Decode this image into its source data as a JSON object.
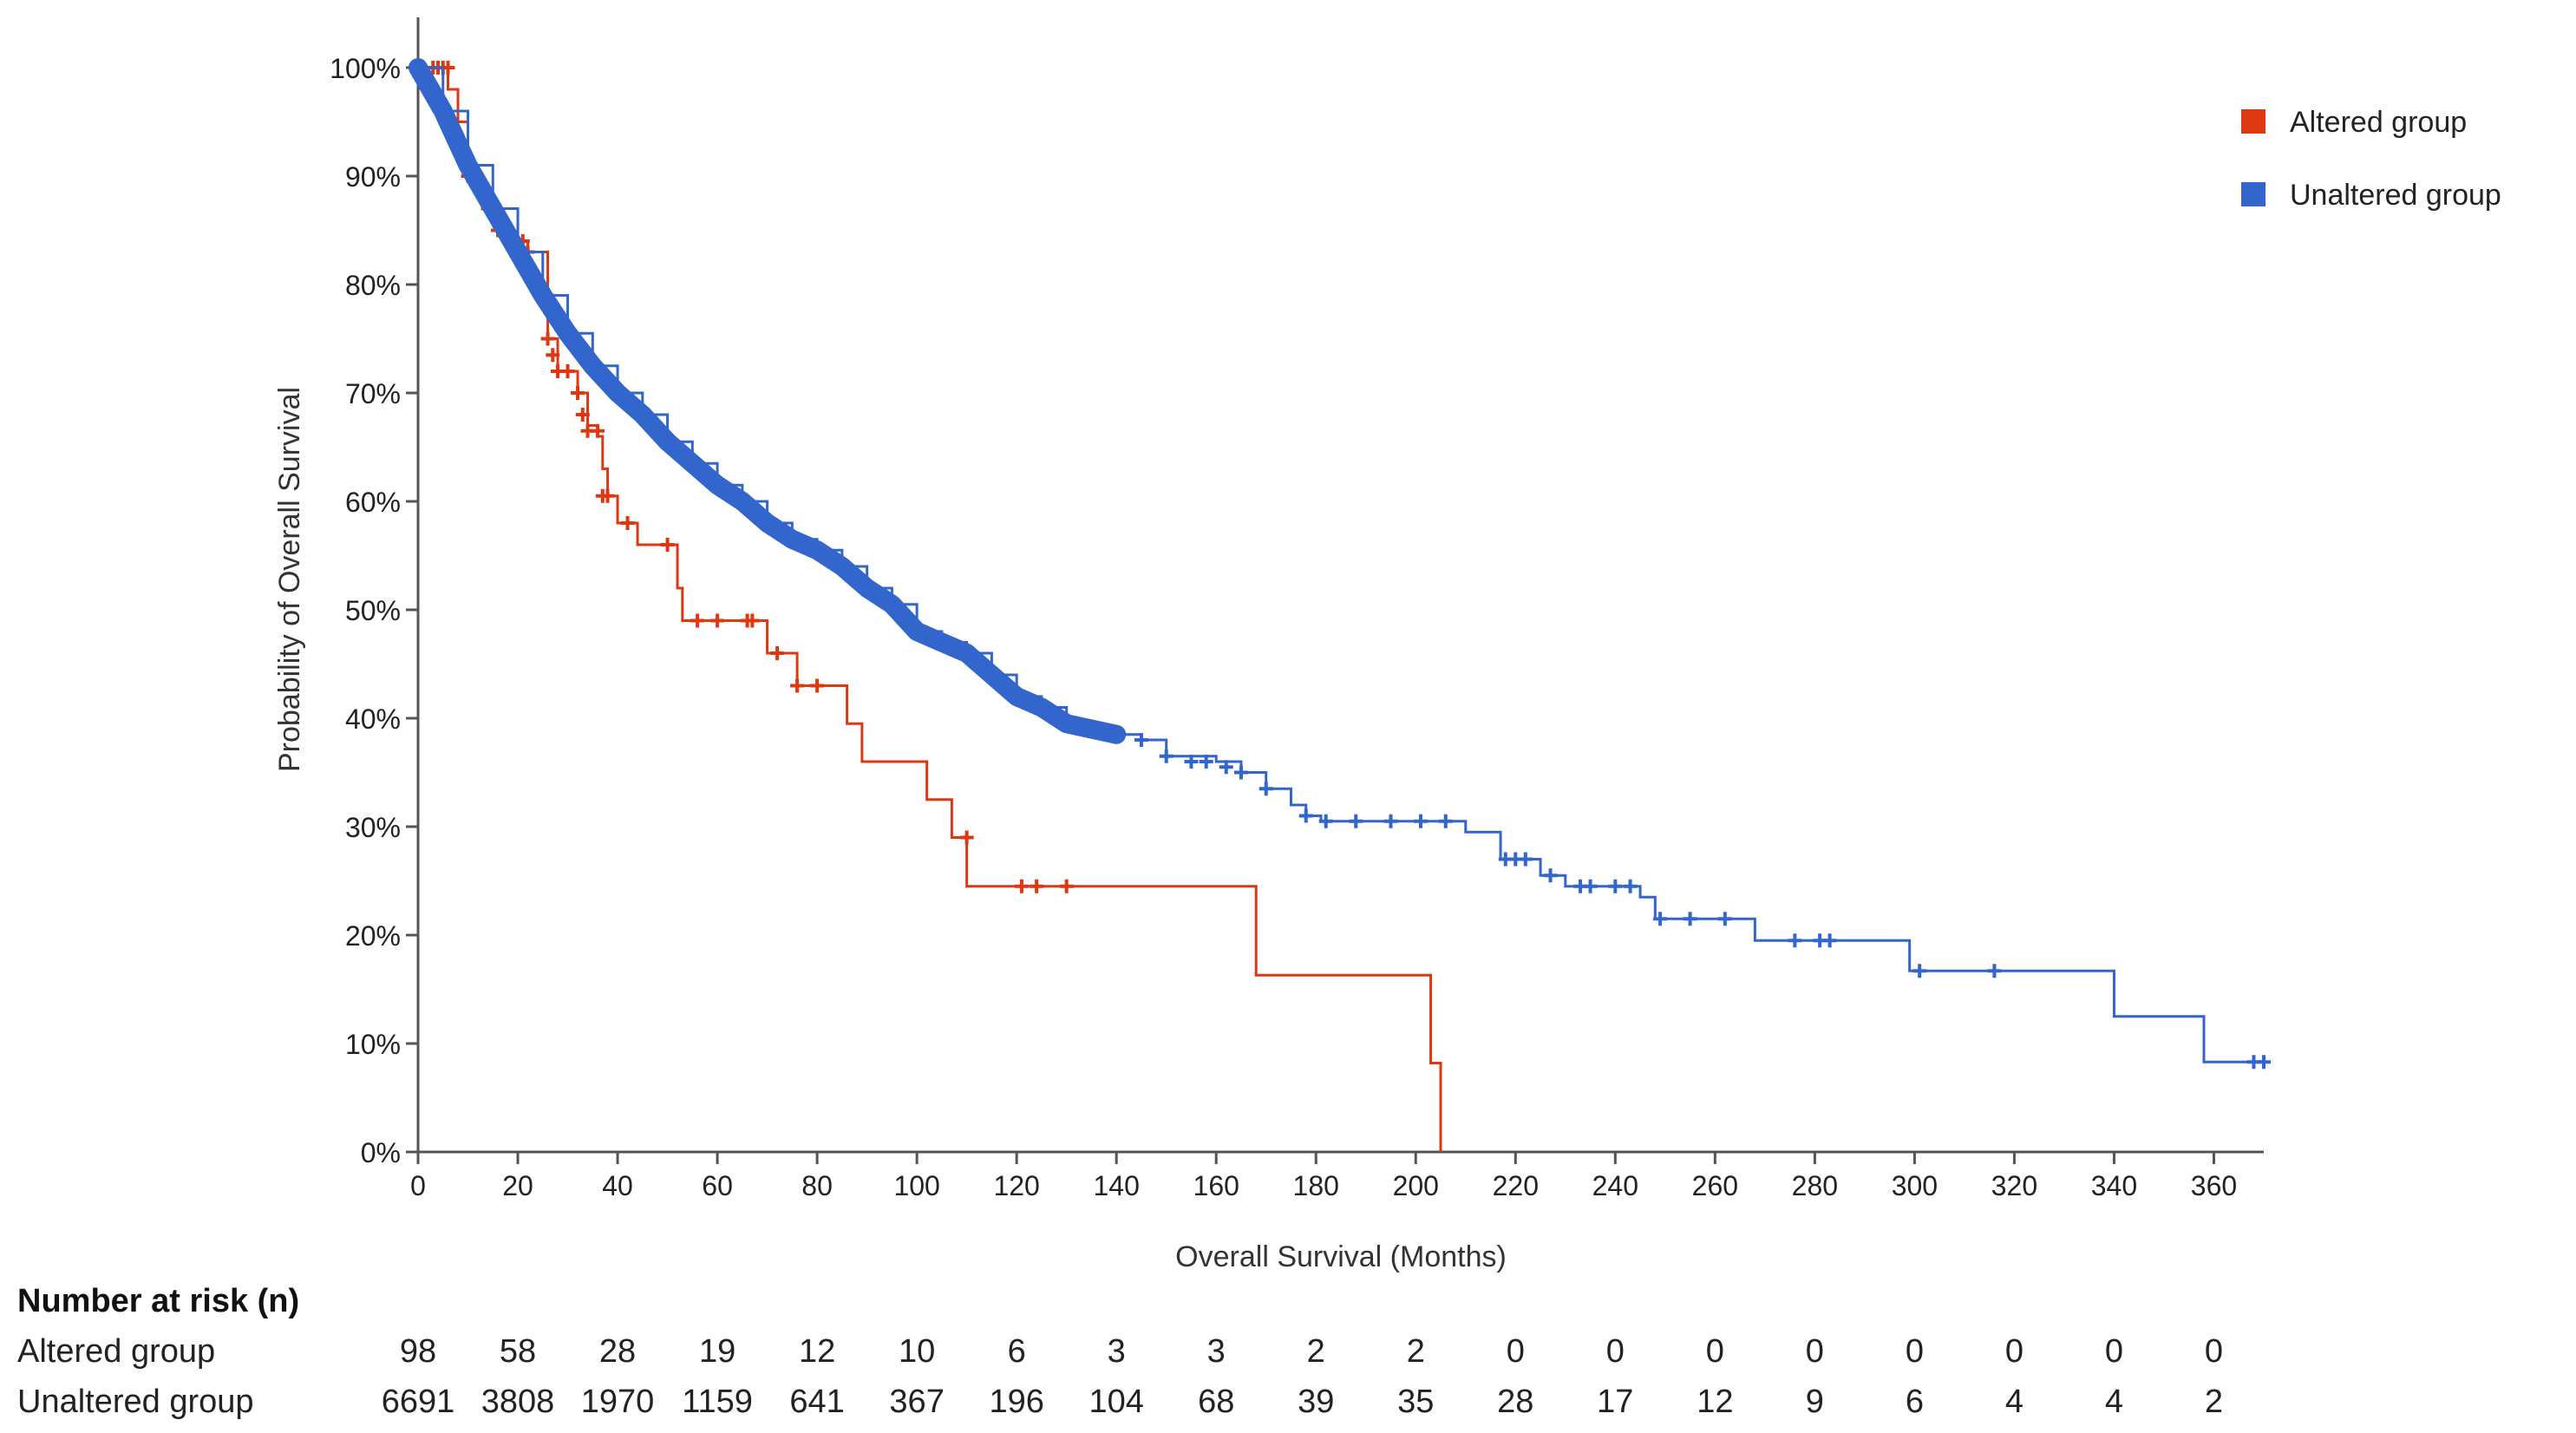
{
  "chart_data": {
    "type": "line",
    "subtype": "kaplan-meier",
    "title": "",
    "xlabel": "Overall Survival (Months)",
    "ylabel": "Probability of Overall Survival",
    "xlim": [
      0,
      370
    ],
    "ylim": [
      0,
      100
    ],
    "x_ticks": [
      0,
      20,
      40,
      60,
      80,
      100,
      120,
      140,
      160,
      180,
      200,
      220,
      240,
      260,
      280,
      300,
      320,
      340,
      360
    ],
    "y_ticks": [
      0,
      10,
      20,
      30,
      40,
      50,
      60,
      70,
      80,
      90,
      100
    ],
    "y_tick_labels": [
      "0%",
      "10%",
      "20%",
      "30%",
      "40%",
      "50%",
      "60%",
      "70%",
      "80%",
      "90%",
      "100%"
    ],
    "legend_position": "top-right",
    "series": [
      {
        "name": "Altered group",
        "color": "#dc3912",
        "step": [
          [
            0,
            100
          ],
          [
            4,
            100
          ],
          [
            6,
            98
          ],
          [
            8,
            95
          ],
          [
            10,
            91
          ],
          [
            12,
            89
          ],
          [
            14,
            87
          ],
          [
            16,
            85
          ],
          [
            18,
            84
          ],
          [
            20,
            84
          ],
          [
            22,
            83
          ],
          [
            26,
            75
          ],
          [
            28,
            72
          ],
          [
            32,
            70
          ],
          [
            34,
            67
          ],
          [
            36,
            66
          ],
          [
            37,
            63
          ],
          [
            38,
            60.5
          ],
          [
            40,
            58
          ],
          [
            44,
            56
          ],
          [
            52,
            52
          ],
          [
            53,
            49
          ],
          [
            70,
            46
          ],
          [
            76,
            43
          ],
          [
            86,
            39.5
          ],
          [
            89,
            36
          ],
          [
            102,
            32.5
          ],
          [
            107,
            29
          ],
          [
            110,
            24.5
          ],
          [
            168,
            16.3
          ],
          [
            203,
            8.2
          ],
          [
            205,
            0
          ]
        ],
        "censored": [
          [
            3,
            100
          ],
          [
            4,
            100
          ],
          [
            5,
            100
          ],
          [
            6,
            100
          ],
          [
            10,
            90
          ],
          [
            14,
            87
          ],
          [
            16,
            85
          ],
          [
            17,
            85
          ],
          [
            19,
            84
          ],
          [
            21,
            84
          ],
          [
            22,
            83
          ],
          [
            26,
            75
          ],
          [
            27,
            73.5
          ],
          [
            28,
            72
          ],
          [
            30,
            72
          ],
          [
            32,
            70
          ],
          [
            33,
            68
          ],
          [
            34,
            66.5
          ],
          [
            36,
            66.5
          ],
          [
            37,
            60.5
          ],
          [
            38,
            60.5
          ],
          [
            42,
            58
          ],
          [
            50,
            56
          ],
          [
            56,
            49
          ],
          [
            60,
            49
          ],
          [
            66,
            49
          ],
          [
            67,
            49
          ],
          [
            72,
            46
          ],
          [
            76,
            43
          ],
          [
            80,
            43
          ],
          [
            110,
            29
          ],
          [
            121,
            24.5
          ],
          [
            124,
            24.5
          ],
          [
            130,
            24.5
          ]
        ]
      },
      {
        "name": "Unaltered group",
        "color": "#3366cc",
        "step": [
          [
            0,
            100
          ],
          [
            5,
            96
          ],
          [
            10,
            91
          ],
          [
            15,
            87
          ],
          [
            20,
            83
          ],
          [
            25,
            79
          ],
          [
            30,
            75.5
          ],
          [
            35,
            72.5
          ],
          [
            40,
            70
          ],
          [
            45,
            68
          ],
          [
            50,
            65.5
          ],
          [
            55,
            63.5
          ],
          [
            60,
            61.5
          ],
          [
            65,
            60
          ],
          [
            70,
            58
          ],
          [
            75,
            56.5
          ],
          [
            80,
            55.5
          ],
          [
            85,
            54
          ],
          [
            90,
            52
          ],
          [
            95,
            50.5
          ],
          [
            100,
            48
          ],
          [
            105,
            47
          ],
          [
            110,
            46
          ],
          [
            115,
            44
          ],
          [
            120,
            42
          ],
          [
            125,
            41
          ],
          [
            130,
            39.5
          ],
          [
            135,
            39
          ],
          [
            140,
            38.5
          ],
          [
            145,
            38
          ],
          [
            150,
            36.5
          ],
          [
            160,
            36
          ],
          [
            165,
            35
          ],
          [
            170,
            33.5
          ],
          [
            175,
            32
          ],
          [
            178,
            31
          ],
          [
            181,
            30.5
          ],
          [
            210,
            29.5
          ],
          [
            217,
            27
          ],
          [
            225,
            25.5
          ],
          [
            230,
            24.5
          ],
          [
            245,
            23.5
          ],
          [
            248,
            21.5
          ],
          [
            268,
            19.5
          ],
          [
            299,
            16.7
          ],
          [
            340,
            12.5
          ],
          [
            358,
            8.3
          ],
          [
            370,
            8.3
          ]
        ],
        "censored": [
          [
            140,
            38.5
          ],
          [
            145,
            38
          ],
          [
            150,
            36.5
          ],
          [
            155,
            36
          ],
          [
            158,
            36
          ],
          [
            162,
            35.5
          ],
          [
            165,
            35
          ],
          [
            170,
            33.5
          ],
          [
            178,
            31
          ],
          [
            182,
            30.5
          ],
          [
            188,
            30.5
          ],
          [
            195,
            30.5
          ],
          [
            201,
            30.5
          ],
          [
            206,
            30.5
          ],
          [
            218,
            27
          ],
          [
            220,
            27
          ],
          [
            222,
            27
          ],
          [
            227,
            25.5
          ],
          [
            233,
            24.5
          ],
          [
            235,
            24.5
          ],
          [
            240,
            24.5
          ],
          [
            243,
            24.5
          ],
          [
            249,
            21.5
          ],
          [
            255,
            21.5
          ],
          [
            262,
            21.5
          ],
          [
            276,
            19.5
          ],
          [
            281,
            19.5
          ],
          [
            283,
            19.5
          ],
          [
            301,
            16.7
          ],
          [
            316,
            16.7
          ],
          [
            368,
            8.3
          ],
          [
            370,
            8.3
          ]
        ]
      }
    ],
    "risk_table": {
      "title": "Number at risk (n)",
      "times": [
        0,
        20,
        40,
        60,
        80,
        100,
        120,
        140,
        160,
        180,
        200,
        220,
        240,
        260,
        280,
        300,
        320,
        340,
        360
      ],
      "rows": [
        {
          "label": "Altered group",
          "values": [
            "98",
            "58",
            "28",
            "19",
            "12",
            "10",
            "6",
            "3",
            "3",
            "2",
            "2",
            "0",
            "0",
            "0",
            "0",
            "0",
            "0",
            "0",
            "0"
          ]
        },
        {
          "label": "Unaltered group",
          "values": [
            "6691",
            "3808",
            "1970",
            "1159",
            "641",
            "367",
            "196",
            "104",
            "68",
            "39",
            "35",
            "28",
            "17",
            "12",
            "9",
            "6",
            "4",
            "4",
            "2"
          ]
        }
      ]
    }
  }
}
